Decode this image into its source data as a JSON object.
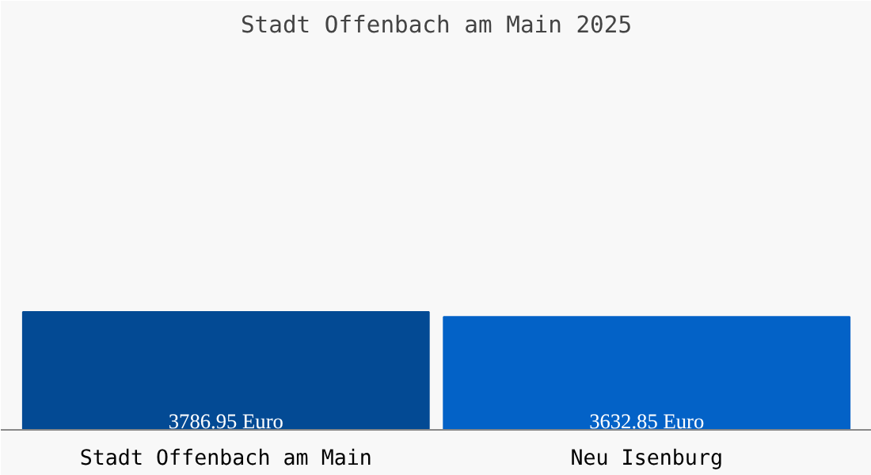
{
  "chart_data": {
    "type": "bar",
    "title": "Stadt Offenbach am Main 2025",
    "categories": [
      "Stadt Offenbach am Main",
      "Neu Isenburg"
    ],
    "values": [
      3786.95,
      3632.85
    ],
    "colors": [
      "#034a94",
      "#0362c7"
    ],
    "value_labels": [
      "3786.95 Euro",
      "3632.85 Euro"
    ]
  }
}
